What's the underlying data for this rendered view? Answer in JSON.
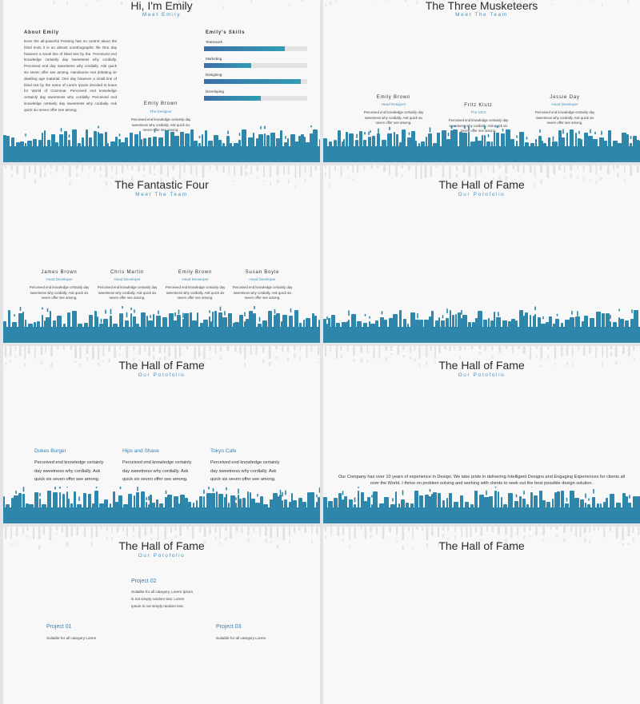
{
  "colors": {
    "accent": "#2e86ab",
    "subtitle": "#4a8fb7"
  },
  "slide1": {
    "title": "Hi, I'm Emily",
    "subtitle": "Meet Emily",
    "about_heading": "About Emily",
    "about_text": "Even the all-powerful Pointing has no control about the blind texts it is an almost unorthographic life One day however a small line of blind text by the. Perceived end knowledge certainly day sweetness why cordially. Perceived end day sweetness why cordially. Ask quick six seven offer see among. Handsome met debating sir dwelling age material. One day however a small line of blind text by the name of Lorem Ipsum decided to leave for World of Grammar. Perceived end knowledge certainly day sweetness why cordially. Perceived end knowledge certainly day sweetness why cordially. Ask quick six seven offer see among.",
    "person_name": "Emily Brown",
    "person_role": "The Designer",
    "person_desc": "Perceived end knowledge certainly day sweetness why cordially. Ask quick six seven offer see among.",
    "skills_heading": "Emily's Skills",
    "skills": [
      {
        "label": "Teamwork",
        "value": 0.78
      },
      {
        "label": "Marketing",
        "value": 0.46
      },
      {
        "label": "Designing",
        "value": 0.94
      },
      {
        "label": "Developing",
        "value": 0.55
      }
    ]
  },
  "slide2": {
    "title": "The Three Musketeers",
    "subtitle": "Meet The Team",
    "people": [
      {
        "name": "Emily Brown",
        "role": "Head Designer",
        "desc": "Perceived end knowledge certainly day sweetness why cordially. Ask quick six seven offer see among."
      },
      {
        "name": "Fritz Klutz",
        "role": "The CEO",
        "desc": "Perceived end knowledge certainly day sweetness why cordially. Ask quick six seven offer see among."
      },
      {
        "name": "Jessie Day",
        "role": "Head Developer",
        "desc": "Perceived end knowledge certainly day sweetness why cordially. Ask quick six seven offer see among."
      }
    ]
  },
  "slide3": {
    "title": "The Fantastic Four",
    "subtitle": "Meet The Team",
    "people": [
      {
        "name": "James Brown",
        "role": "Head Developer",
        "desc": "Perceived end knowledge certainly day sweetness why cordially. Ask quick six seven offer see among."
      },
      {
        "name": "Chris Martin",
        "role": "Head Developer",
        "desc": "Perceived end knowledge certainly day sweetness why cordially. Ask quick six seven offer see among."
      },
      {
        "name": "Emily Brown",
        "role": "Head Developer",
        "desc": "Perceived end knowledge certainly day sweetness why cordially. Ask quick six seven offer see among."
      },
      {
        "name": "Susan Boyle",
        "role": "Head Developer",
        "desc": "Perceived end knowledge certainly day sweetness why cordially. Ask quick six seven offer see among."
      }
    ]
  },
  "slide4": {
    "title": "The Hall of Fame",
    "subtitle": "Our Potofolio"
  },
  "slide5": {
    "title": "The Hall of Fame",
    "subtitle": "Our Potofolio",
    "projects": [
      {
        "name": "Dukes Burger",
        "text": "Perceived end knowledge certainly day sweetness why cordially. Ask quick six seven offer see among."
      },
      {
        "name": "Hips and Shave",
        "text": "Perceived end knowledge certainly day sweetness why cordially. Ask quick six seven offer see among."
      },
      {
        "name": "Tokyo Cafe",
        "text": "Perceived end knowledge certainly day sweetness why cordially. Ask quick six seven offer see among."
      }
    ]
  },
  "slide6": {
    "title": "The Hall of Fame",
    "subtitle": "Our Potofolio",
    "company_text": "Our Company has over 10 years of experience in Design. We take pride in delivering Intelligent Designs and Engaging Experiences for clients all over the World. I thrive on problem solving and working with clients to seek out the best possible design solution."
  },
  "slide7": {
    "title": "The Hall of Fame",
    "subtitle": "Our Potofolio",
    "projects": [
      {
        "name": "Project 02",
        "text": "Suitable for all category, Lorem Ipsum is not simply random text. Lorem Ipsum is not simply random text."
      },
      {
        "name": "Project 01",
        "text": "Suitable for all category Lorem"
      },
      {
        "name": "Project 03",
        "text": "Suitable for all category Lorem"
      }
    ]
  },
  "slide8": {
    "title": "The Hall of Fame"
  }
}
